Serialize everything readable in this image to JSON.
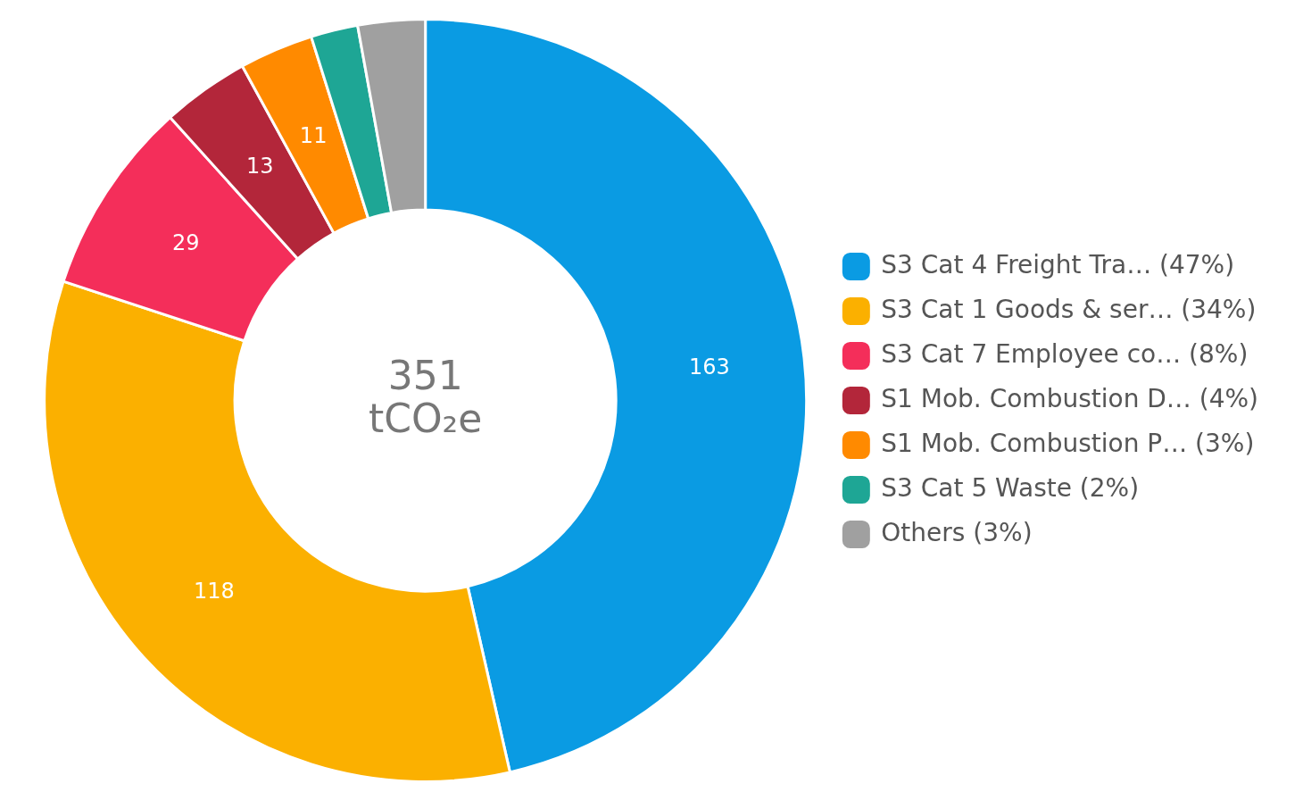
{
  "chart_data": {
    "type": "donut",
    "categories": [
      "S3 Cat 4 Freight Tra… (47%)",
      "S3 Cat 1 Goods & ser… (34%)",
      "S3 Cat 7 Employee co… (8%)",
      "S1 Mob. Combustion D… (4%)",
      "S1 Mob. Combustion P… (3%)",
      "S3 Cat 5 Waste (2%)",
      "Others (3%)"
    ],
    "values": [
      163,
      118,
      29,
      13,
      11,
      7,
      10
    ],
    "value_labels": [
      "163",
      "118",
      "29",
      "13",
      "11",
      null,
      null
    ],
    "colors": [
      "#0a9be3",
      "#fbb000",
      "#f42e5a",
      "#b3263a",
      "#ff8a00",
      "#1ea695",
      "#a0a0a0"
    ],
    "annotations": [
      "351",
      "tCO₂e"
    ],
    "legend": "right"
  }
}
